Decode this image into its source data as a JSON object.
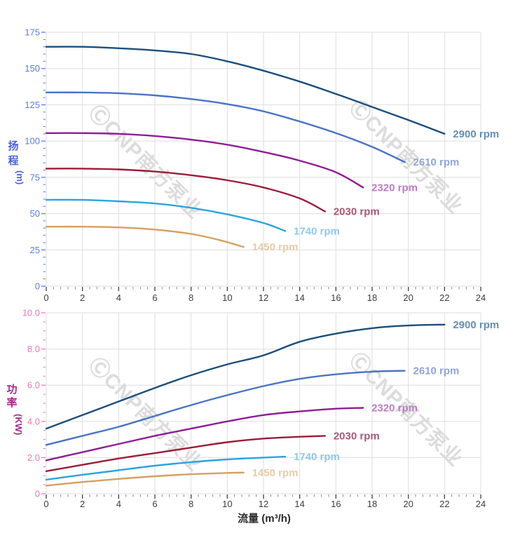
{
  "figure": {
    "watermark_text": "ⒸCNP南方泵业",
    "watermark_color": "#dcdcdc"
  },
  "chart_data": [
    {
      "type": "line",
      "name": "head-vs-flow",
      "ylabel_cjk": "扬程",
      "ylabel_unit": "(m)",
      "xlabel": "",
      "xlim": [
        0,
        24
      ],
      "ylim": [
        0,
        175
      ],
      "x_tick_step": 2,
      "x_minor_step": 0.4,
      "y_tick_step": 25,
      "y_minor_step": 5,
      "y_tick_decimals": 0,
      "grid": true,
      "legend_position": "end-of-line",
      "tick_label_color": "#5b7ce2",
      "title_color": "#4a63d8",
      "x_tick_label_color": "#3d3d3d",
      "series": [
        {
          "name": "2900 rpm",
          "color": "#1b4e7c",
          "label_color": "#6490b4",
          "points": [
            [
              0,
              165
            ],
            [
              2,
              165
            ],
            [
              4,
              164
            ],
            [
              6,
              162.5
            ],
            [
              8,
              160
            ],
            [
              10,
              155
            ],
            [
              12,
              148.5
            ],
            [
              14,
              141
            ],
            [
              16,
              132.5
            ],
            [
              18,
              123.5
            ],
            [
              20,
              114.5
            ],
            [
              22,
              105
            ]
          ]
        },
        {
          "name": "2610 rpm",
          "color": "#4a74c4",
          "label_color": "#8fa6d9",
          "points": [
            [
              0,
              133.5
            ],
            [
              2,
              133.5
            ],
            [
              4,
              133
            ],
            [
              6,
              131.5
            ],
            [
              8,
              129
            ],
            [
              10,
              125.5
            ],
            [
              12,
              120.5
            ],
            [
              14,
              113.5
            ],
            [
              16,
              105.5
            ],
            [
              18,
              96
            ],
            [
              19.8,
              85.5
            ]
          ]
        },
        {
          "name": "2320 rpm",
          "color": "#8e1d96",
          "label_color": "#bd7cc4",
          "points": [
            [
              0,
              105.5
            ],
            [
              2,
              105.5
            ],
            [
              4,
              105
            ],
            [
              6,
              103.5
            ],
            [
              8,
              101
            ],
            [
              10,
              97.5
            ],
            [
              12,
              92.5
            ],
            [
              14,
              86.5
            ],
            [
              16,
              78.5
            ],
            [
              17.5,
              68
            ]
          ]
        },
        {
          "name": "2030 rpm",
          "color": "#9e1b3a",
          "label_color": "#aa5872",
          "points": [
            [
              0,
              81
            ],
            [
              2,
              81
            ],
            [
              4,
              80.5
            ],
            [
              6,
              79
            ],
            [
              8,
              76.5
            ],
            [
              10,
              73
            ],
            [
              12,
              68
            ],
            [
              14,
              60.5
            ],
            [
              15.4,
              51.5
            ]
          ]
        },
        {
          "name": "1740 rpm",
          "color": "#29a5de",
          "label_color": "#90c8ec",
          "points": [
            [
              0,
              59.5
            ],
            [
              2,
              59.5
            ],
            [
              4,
              58.5
            ],
            [
              6,
              57
            ],
            [
              8,
              54
            ],
            [
              10,
              49.5
            ],
            [
              12,
              43.5
            ],
            [
              13.2,
              38
            ]
          ]
        },
        {
          "name": "1450 rpm",
          "color": "#d5a05f",
          "label_color": "#e5cda6",
          "points": [
            [
              0,
              41
            ],
            [
              2,
              41
            ],
            [
              4,
              40.5
            ],
            [
              6,
              39
            ],
            [
              8,
              36
            ],
            [
              9.5,
              32
            ],
            [
              10.9,
              27
            ]
          ]
        }
      ]
    },
    {
      "type": "line",
      "name": "power-vs-flow",
      "ylabel_cjk": "功率",
      "ylabel_unit": "(KW)",
      "xlabel": "流量 (m³/h)",
      "xlim": [
        0,
        24
      ],
      "ylim": [
        0,
        10
      ],
      "x_tick_step": 2,
      "x_minor_step": 0.4,
      "y_tick_step": 2,
      "y_minor_step": 0.5,
      "y_tick_decimals": 1,
      "grid": true,
      "legend_position": "end-of-line",
      "tick_label_color": "#e87cb1",
      "title_color": "#a12b8e",
      "x_tick_label_color": "#3d3d3d",
      "xlabel_color": "#2b2b2b",
      "series": [
        {
          "name": "2900 rpm",
          "color": "#1b4e7c",
          "label_color": "#6490b4",
          "points": [
            [
              0,
              3.6
            ],
            [
              2,
              4.35
            ],
            [
              4,
              5.1
            ],
            [
              6,
              5.85
            ],
            [
              8,
              6.55
            ],
            [
              10,
              7.15
            ],
            [
              12,
              7.65
            ],
            [
              14,
              8.4
            ],
            [
              16,
              8.85
            ],
            [
              18,
              9.15
            ],
            [
              20,
              9.3
            ],
            [
              22,
              9.35
            ]
          ]
        },
        {
          "name": "2610 rpm",
          "color": "#4a74c4",
          "label_color": "#8fa6d9",
          "points": [
            [
              0,
              2.7
            ],
            [
              2,
              3.2
            ],
            [
              4,
              3.7
            ],
            [
              6,
              4.3
            ],
            [
              8,
              4.9
            ],
            [
              10,
              5.45
            ],
            [
              12,
              5.95
            ],
            [
              14,
              6.35
            ],
            [
              16,
              6.6
            ],
            [
              18,
              6.75
            ],
            [
              19.8,
              6.8
            ]
          ]
        },
        {
          "name": "2320 rpm",
          "color": "#8e1d96",
          "label_color": "#bd7cc4",
          "points": [
            [
              0,
              1.85
            ],
            [
              2,
              2.3
            ],
            [
              4,
              2.75
            ],
            [
              6,
              3.2
            ],
            [
              8,
              3.6
            ],
            [
              10,
              4.0
            ],
            [
              12,
              4.35
            ],
            [
              14,
              4.55
            ],
            [
              16,
              4.7
            ],
            [
              17.5,
              4.75
            ]
          ]
        },
        {
          "name": "2030 rpm",
          "color": "#9e1b3a",
          "label_color": "#aa5872",
          "points": [
            [
              0,
              1.25
            ],
            [
              2,
              1.6
            ],
            [
              4,
              1.95
            ],
            [
              6,
              2.25
            ],
            [
              8,
              2.55
            ],
            [
              10,
              2.85
            ],
            [
              12,
              3.05
            ],
            [
              14,
              3.15
            ],
            [
              15.4,
              3.2
            ]
          ]
        },
        {
          "name": "1740 rpm",
          "color": "#29a5de",
          "label_color": "#90c8ec",
          "points": [
            [
              0,
              0.78
            ],
            [
              2,
              1.05
            ],
            [
              4,
              1.3
            ],
            [
              6,
              1.55
            ],
            [
              8,
              1.75
            ],
            [
              10,
              1.9
            ],
            [
              12,
              2.0
            ],
            [
              13.2,
              2.05
            ]
          ]
        },
        {
          "name": "1450 rpm",
          "color": "#d5a05f",
          "label_color": "#e5cda6",
          "points": [
            [
              0,
              0.45
            ],
            [
              2,
              0.65
            ],
            [
              4,
              0.82
            ],
            [
              6,
              0.97
            ],
            [
              8,
              1.08
            ],
            [
              10,
              1.15
            ],
            [
              10.9,
              1.17
            ]
          ]
        }
      ]
    }
  ]
}
